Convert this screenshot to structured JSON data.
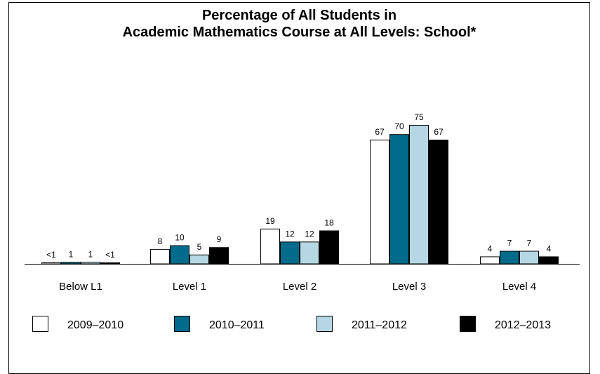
{
  "chart_data": {
    "type": "bar",
    "title_line1": "Percentage of All Students in",
    "title_line2": "Academic Mathematics Course at All Levels: School*",
    "categories": [
      "Below L1",
      "Level 1",
      "Level 2",
      "Level 3",
      "Level 4"
    ],
    "series": [
      {
        "name": "2009–2010",
        "values": [
          0.4,
          8,
          19,
          67,
          4
        ],
        "labels": [
          "<1",
          "8",
          "19",
          "67",
          "4"
        ],
        "color": "#ffffff"
      },
      {
        "name": "2010–2011",
        "values": [
          1,
          10,
          12,
          70,
          7
        ],
        "labels": [
          "1",
          "10",
          "12",
          "70",
          "7"
        ],
        "color": "#006b8a"
      },
      {
        "name": "2011–2012",
        "values": [
          1,
          5,
          12,
          75,
          7
        ],
        "labels": [
          "1",
          "5",
          "12",
          "75",
          "7"
        ],
        "color": "#b5d7e3"
      },
      {
        "name": "2012–2013",
        "values": [
          0.4,
          9,
          18,
          67,
          4
        ],
        "labels": [
          "<1",
          "9",
          "18",
          "67",
          "4"
        ],
        "color": "#000000"
      }
    ],
    "ylim": [
      0,
      100
    ],
    "grid": false,
    "legend_position": "bottom"
  }
}
